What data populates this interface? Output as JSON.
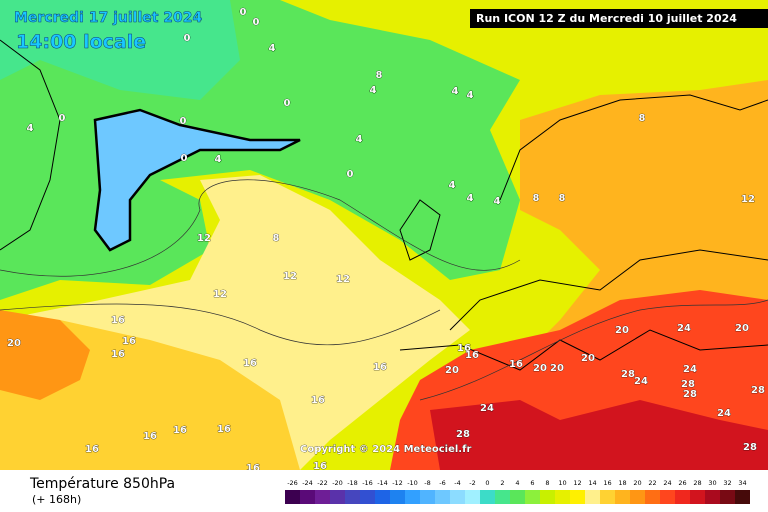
{
  "header": {
    "date": "Mercredi 17 juillet 2024",
    "time": "14:00 locale",
    "run": "Run ICON 12 Z du Mercredi 10 juillet 2024"
  },
  "footer": {
    "title": "Température 850hPa",
    "lead": "(+ 168h)",
    "copyright": "Copyright © 2024 Meteociel.fr"
  },
  "contour_labels": [
    "0",
    "0",
    "0",
    "4",
    "8",
    "4",
    "4",
    "4",
    "0",
    "0",
    "0",
    "4",
    "4",
    "0",
    "4",
    "0",
    "4",
    "4",
    "4",
    "8",
    "8",
    "8",
    "12",
    "12",
    "8",
    "12",
    "12",
    "12",
    "16",
    "20",
    "16",
    "16",
    "16",
    "16",
    "20",
    "16",
    "16",
    "16",
    "20",
    "20",
    "20",
    "20",
    "24",
    "20",
    "24",
    "28",
    "24",
    "28",
    "28",
    "28",
    "24",
    "16",
    "16",
    "28",
    "24",
    "28",
    "16",
    "16",
    "16",
    "16",
    "16"
  ],
  "scale": {
    "labels": [
      "-26",
      "-24",
      "-22",
      "-20",
      "-18",
      "-16",
      "-14",
      "-12",
      "-10",
      "-8",
      "-6",
      "-4",
      "-2",
      "0",
      "2",
      "4",
      "6",
      "8",
      "10",
      "12",
      "14",
      "16",
      "18",
      "20",
      "22",
      "24",
      "26",
      "28",
      "30",
      "32",
      "34"
    ],
    "colors": [
      "#3c0050",
      "#5a0a78",
      "#6e1e96",
      "#5a32aa",
      "#4646be",
      "#3250d2",
      "#1e64e6",
      "#1e82f0",
      "#32a0ff",
      "#50b4ff",
      "#6ec8ff",
      "#8cdcff",
      "#a0f0ff",
      "#3cdcc8",
      "#46e68c",
      "#5ae65a",
      "#8cf03c",
      "#c8f000",
      "#e6f000",
      "#fff000",
      "#fff08c",
      "#ffd232",
      "#ffb41e",
      "#ff9614",
      "#ff6e14",
      "#ff461e",
      "#f0281e",
      "#d2141e",
      "#aa0a1e",
      "#780a14",
      "#460a0a"
    ]
  }
}
